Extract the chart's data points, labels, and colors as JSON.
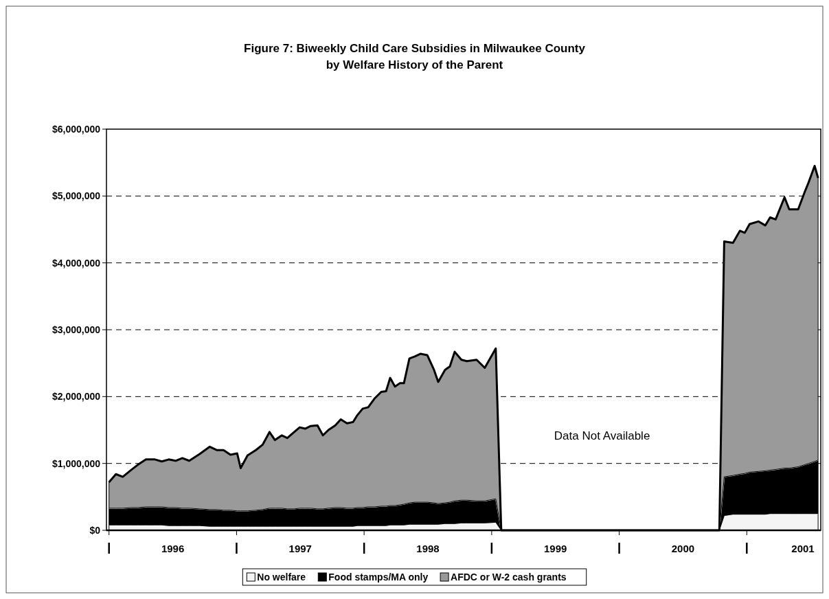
{
  "chart_data": {
    "type": "area",
    "stacked": true,
    "title": "Figure 7:   Biweekly Child Care Subsidies in Milwaukee County\nby Welfare History of the Parent",
    "x": [
      1996.0,
      1996.054,
      1996.108,
      1996.172,
      1996.226,
      1996.29,
      1996.36,
      1996.414,
      1996.468,
      1996.522,
      1996.575,
      1996.629,
      1996.71,
      1996.79,
      1996.844,
      1996.898,
      1996.952,
      1997.005,
      1997.032,
      1997.086,
      1997.151,
      1997.204,
      1997.258,
      1997.301,
      1997.355,
      1997.398,
      1997.452,
      1997.495,
      1997.538,
      1997.581,
      1997.634,
      1997.677,
      1997.72,
      1997.774,
      1997.817,
      1997.866,
      1997.914,
      1997.946,
      1997.989,
      1998.032,
      1998.081,
      1998.134,
      1998.172,
      1998.204,
      1998.242,
      1998.28,
      1998.312,
      1998.355,
      1998.398,
      1998.441,
      1998.495,
      1998.548,
      1998.581,
      1998.634,
      1998.672,
      1998.71,
      1998.763,
      1998.806,
      1998.882,
      1998.946,
      1999.032,
      1999.075,
      2000.785,
      2000.823,
      2000.892,
      2000.946,
      2000.984,
      2001.022,
      2001.091,
      2001.145,
      2001.183,
      2001.226,
      2001.296,
      2001.333,
      2001.403,
      2001.452,
      2001.484,
      2001.532,
      2001.559
    ],
    "series": [
      {
        "name": "No welfare",
        "color": "#f4f4f4",
        "values": [
          80000,
          80000,
          80000,
          80000,
          80000,
          80000,
          80000,
          80000,
          70000,
          70000,
          70000,
          70000,
          70000,
          60000,
          60000,
          60000,
          60000,
          60000,
          60000,
          60000,
          60000,
          60000,
          60000,
          60000,
          60000,
          60000,
          60000,
          60000,
          60000,
          60000,
          60000,
          60000,
          60000,
          60000,
          60000,
          60000,
          60000,
          70000,
          70000,
          70000,
          70000,
          70000,
          70000,
          80000,
          80000,
          80000,
          80000,
          90000,
          90000,
          90000,
          90000,
          90000,
          90000,
          100000,
          100000,
          100000,
          110000,
          110000,
          110000,
          110000,
          120000,
          0,
          0,
          220000,
          240000,
          240000,
          240000,
          240000,
          240000,
          240000,
          250000,
          250000,
          250000,
          250000,
          250000,
          250000,
          250000,
          250000,
          250000
        ]
      },
      {
        "name": "Food stamps/MA only",
        "color": "#000000",
        "values": [
          250000,
          250000,
          250000,
          260000,
          260000,
          270000,
          270000,
          270000,
          270000,
          270000,
          260000,
          260000,
          250000,
          250000,
          250000,
          240000,
          240000,
          230000,
          230000,
          230000,
          240000,
          250000,
          270000,
          270000,
          270000,
          260000,
          260000,
          270000,
          270000,
          270000,
          260000,
          260000,
          270000,
          280000,
          280000,
          270000,
          270000,
          270000,
          270000,
          280000,
          280000,
          290000,
          290000,
          290000,
          290000,
          300000,
          310000,
          320000,
          330000,
          330000,
          330000,
          320000,
          310000,
          310000,
          320000,
          340000,
          340000,
          340000,
          330000,
          330000,
          350000,
          0,
          0,
          580000,
          580000,
          600000,
          610000,
          630000,
          640000,
          650000,
          650000,
          660000,
          680000,
          680000,
          700000,
          730000,
          750000,
          780000,
          800000
        ]
      },
      {
        "name": "AFDC or W-2 cash grants",
        "color": "#9a9a9a",
        "values": [
          390000,
          510000,
          470000,
          560000,
          640000,
          710000,
          710000,
          680000,
          720000,
          700000,
          750000,
          710000,
          820000,
          940000,
          890000,
          900000,
          830000,
          860000,
          640000,
          830000,
          900000,
          970000,
          1140000,
          1020000,
          1090000,
          1060000,
          1150000,
          1210000,
          1190000,
          1230000,
          1250000,
          1100000,
          1170000,
          1230000,
          1320000,
          1270000,
          1290000,
          1380000,
          1480000,
          1490000,
          1620000,
          1710000,
          1720000,
          1910000,
          1780000,
          1820000,
          1810000,
          2160000,
          2180000,
          2220000,
          2200000,
          1990000,
          1820000,
          1990000,
          2030000,
          2230000,
          2100000,
          2080000,
          2110000,
          1990000,
          2250000,
          0,
          0,
          3520000,
          3480000,
          3640000,
          3600000,
          3710000,
          3740000,
          3670000,
          3780000,
          3740000,
          4050000,
          3870000,
          3850000,
          4070000,
          4200000,
          4420000,
          4220000
        ]
      }
    ],
    "xlim": [
      1995.98,
      2001.58
    ],
    "xticks": [
      {
        "value": 1996,
        "label": null
      },
      {
        "value": 1996.5,
        "label": "1996"
      },
      {
        "value": 1997,
        "label": null
      },
      {
        "value": 1997.5,
        "label": "1997"
      },
      {
        "value": 1998,
        "label": null
      },
      {
        "value": 1998.5,
        "label": "1998"
      },
      {
        "value": 1999,
        "label": null
      },
      {
        "value": 1999.5,
        "label": "1999"
      },
      {
        "value": 2000,
        "label": null
      },
      {
        "value": 2000.5,
        "label": "2000"
      },
      {
        "value": 2001,
        "label": null
      },
      {
        "value": 2001.44,
        "label": "2001"
      }
    ],
    "ylim": [
      0,
      6000000
    ],
    "yticks": [
      {
        "value": 0,
        "label": "$0"
      },
      {
        "value": 1000000,
        "label": "$1,000,000"
      },
      {
        "value": 2000000,
        "label": "$2,000,000"
      },
      {
        "value": 3000000,
        "label": "$3,000,000"
      },
      {
        "value": 4000000,
        "label": "$4,000,000"
      },
      {
        "value": 5000000,
        "label": "$5,000,000"
      },
      {
        "value": 6000000,
        "label": "$6,000,000"
      }
    ],
    "grid": "y",
    "legend": "bottom",
    "annotations": [
      "Data Not Available"
    ]
  }
}
